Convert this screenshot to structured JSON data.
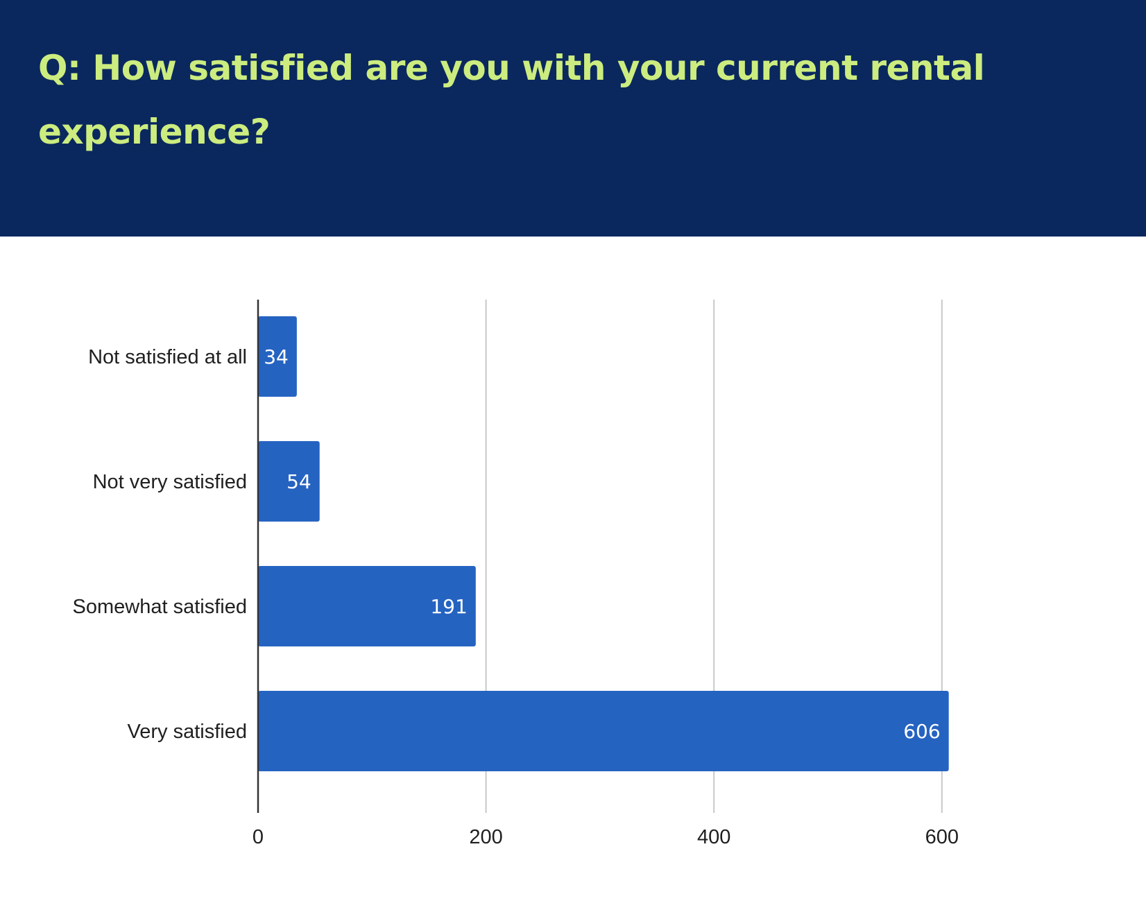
{
  "header": {
    "title": "Q: How satisfied are you with your current rental experience?"
  },
  "chart_data": {
    "type": "bar",
    "orientation": "horizontal",
    "categories": [
      "Not satisfied at all",
      "Not very satisfied",
      "Somewhat satisfied",
      "Very satisfied"
    ],
    "values": [
      34,
      54,
      191,
      606
    ],
    "data_labels": [
      "34",
      "54",
      "191",
      "606"
    ],
    "xticks": [
      0,
      200,
      400,
      600
    ],
    "xlim": [
      0,
      600
    ],
    "grid": "vertical",
    "legend": "none",
    "title": "",
    "xlabel": "",
    "ylabel": "",
    "colors": {
      "bar": "#2563c1",
      "grid": "#c8c8c8",
      "axis": "#333333"
    }
  }
}
